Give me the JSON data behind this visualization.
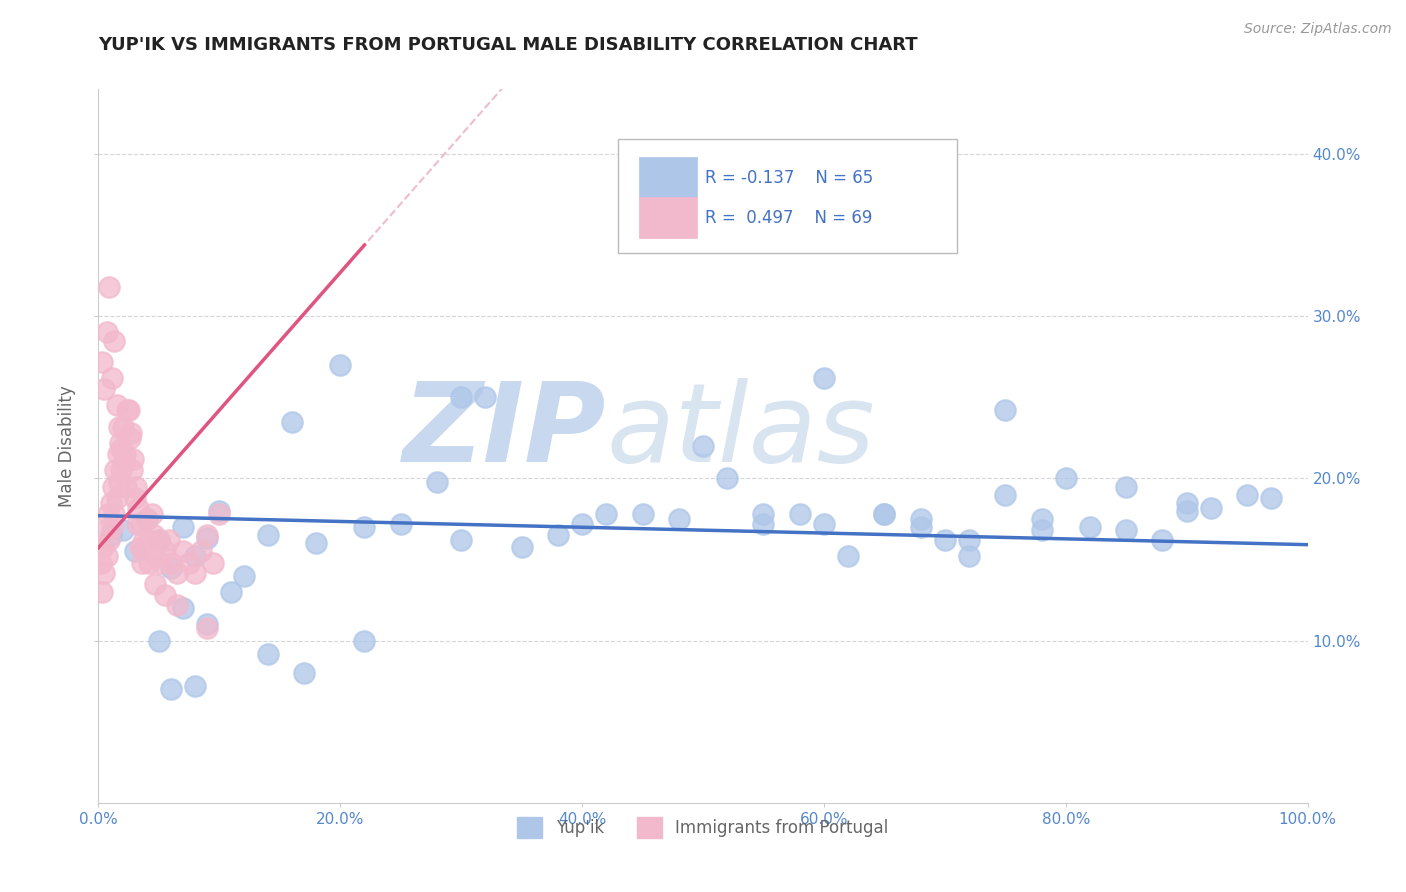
{
  "title": "YUP'IK VS IMMIGRANTS FROM PORTUGAL MALE DISABILITY CORRELATION CHART",
  "source": "Source: ZipAtlas.com",
  "ylabel": "Male Disability",
  "legend_blue_label": "Yup'ik",
  "legend_pink_label": "Immigrants from Portugal",
  "blue_R": -0.137,
  "blue_N": 65,
  "pink_R": 0.497,
  "pink_N": 69,
  "xlim": [
    0.0,
    1.0
  ],
  "ylim": [
    0.0,
    0.44
  ],
  "xtick_labels": [
    "0.0%",
    "20.0%",
    "40.0%",
    "60.0%",
    "80.0%",
    "100.0%"
  ],
  "ytick_labels": [
    "10.0%",
    "20.0%",
    "30.0%",
    "40.0%"
  ],
  "ytick_values": [
    0.1,
    0.2,
    0.3,
    0.4
  ],
  "xtick_values": [
    0.0,
    0.2,
    0.4,
    0.6,
    0.8,
    1.0
  ],
  "blue_scatter_x": [
    0.01,
    0.02,
    0.03,
    0.04,
    0.05,
    0.06,
    0.07,
    0.08,
    0.09,
    0.1,
    0.12,
    0.14,
    0.16,
    0.18,
    0.2,
    0.22,
    0.25,
    0.28,
    0.3,
    0.35,
    0.4,
    0.45,
    0.5,
    0.52,
    0.55,
    0.58,
    0.6,
    0.62,
    0.65,
    0.68,
    0.7,
    0.72,
    0.75,
    0.78,
    0.8,
    0.82,
    0.85,
    0.88,
    0.9,
    0.92,
    0.95,
    0.97,
    0.3,
    0.32,
    0.08,
    0.06,
    0.05,
    0.07,
    0.09,
    0.11,
    0.14,
    0.17,
    0.22,
    0.6,
    0.75,
    0.85,
    0.9,
    0.68,
    0.78,
    0.55,
    0.42,
    0.48,
    0.38,
    0.65,
    0.72
  ],
  "blue_scatter_y": [
    0.165,
    0.168,
    0.155,
    0.175,
    0.162,
    0.145,
    0.17,
    0.152,
    0.163,
    0.18,
    0.14,
    0.165,
    0.235,
    0.16,
    0.27,
    0.17,
    0.172,
    0.198,
    0.162,
    0.158,
    0.172,
    0.178,
    0.22,
    0.2,
    0.172,
    0.178,
    0.172,
    0.152,
    0.178,
    0.17,
    0.162,
    0.162,
    0.19,
    0.168,
    0.2,
    0.17,
    0.168,
    0.162,
    0.18,
    0.182,
    0.19,
    0.188,
    0.25,
    0.25,
    0.072,
    0.07,
    0.1,
    0.12,
    0.11,
    0.13,
    0.092,
    0.08,
    0.1,
    0.262,
    0.242,
    0.195,
    0.185,
    0.175,
    0.175,
    0.178,
    0.178,
    0.175,
    0.165,
    0.178,
    0.152
  ],
  "pink_scatter_x": [
    0.002,
    0.003,
    0.004,
    0.005,
    0.006,
    0.007,
    0.008,
    0.009,
    0.01,
    0.011,
    0.012,
    0.013,
    0.014,
    0.015,
    0.016,
    0.017,
    0.018,
    0.019,
    0.02,
    0.022,
    0.024,
    0.026,
    0.028,
    0.03,
    0.032,
    0.034,
    0.036,
    0.038,
    0.04,
    0.042,
    0.044,
    0.046,
    0.048,
    0.05,
    0.052,
    0.055,
    0.058,
    0.06,
    0.065,
    0.07,
    0.075,
    0.08,
    0.085,
    0.09,
    0.095,
    0.1,
    0.003,
    0.005,
    0.007,
    0.009,
    0.011,
    0.013,
    0.015,
    0.017,
    0.019,
    0.021,
    0.023,
    0.025,
    0.027,
    0.029,
    0.031,
    0.033,
    0.035,
    0.037,
    0.042,
    0.047,
    0.055,
    0.065,
    0.09
  ],
  "pink_scatter_y": [
    0.148,
    0.13,
    0.158,
    0.142,
    0.168,
    0.152,
    0.178,
    0.162,
    0.185,
    0.17,
    0.195,
    0.178,
    0.205,
    0.188,
    0.215,
    0.198,
    0.222,
    0.205,
    0.232,
    0.215,
    0.242,
    0.225,
    0.205,
    0.188,
    0.172,
    0.158,
    0.148,
    0.162,
    0.175,
    0.162,
    0.178,
    0.165,
    0.152,
    0.162,
    0.148,
    0.155,
    0.162,
    0.148,
    0.142,
    0.155,
    0.148,
    0.142,
    0.155,
    0.165,
    0.148,
    0.178,
    0.272,
    0.255,
    0.29,
    0.318,
    0.262,
    0.285,
    0.245,
    0.232,
    0.218,
    0.21,
    0.195,
    0.242,
    0.228,
    0.212,
    0.195,
    0.182,
    0.172,
    0.158,
    0.148,
    0.135,
    0.128,
    0.122,
    0.108
  ],
  "blue_color": "#aec6e8",
  "pink_color": "#f2b8cb",
  "blue_line_color": "#4472c4",
  "pink_line_color": "#e05580",
  "pink_dashed_color": "#e8a0b8",
  "background_color": "#ffffff",
  "grid_color": "#cccccc",
  "title_color": "#222222",
  "watermark_color": "#dce6f0",
  "axis_label_color": "#666666",
  "tick_label_color": "#5588cc"
}
